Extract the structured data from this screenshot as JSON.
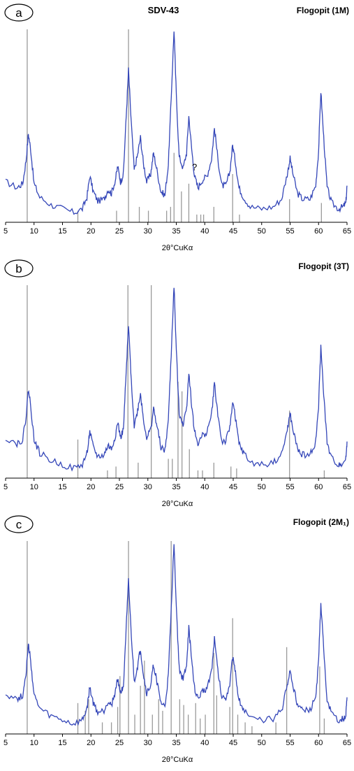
{
  "figure": {
    "accent_color": "#3446b8",
    "reference_color": "#9a9a9a"
  },
  "chart_data": [
    {
      "type": "line",
      "panel_label": "a",
      "title": "SDV-43",
      "reference_phase": "Flogopit (1M)",
      "xlabel": "2θ°CuKα",
      "ylabel": "",
      "xlim": [
        5,
        65
      ],
      "xticks": [
        "5",
        "10",
        "15",
        "20",
        "25",
        "30",
        "35",
        "40",
        "45",
        "50",
        "55",
        "60",
        "65"
      ],
      "grid": false,
      "annotations": [
        {
          "text": "?",
          "x": 38.2,
          "y": 0.27
        }
      ],
      "x": [
        5.0,
        7.0,
        8.0,
        8.6,
        9.0,
        9.4,
        10.0,
        11.0,
        13.0,
        15.0,
        17.0,
        18.5,
        19.3,
        19.8,
        20.4,
        21.2,
        22.3,
        23.0,
        23.6,
        24.3,
        24.7,
        25.2,
        25.7,
        26.2,
        26.6,
        27.0,
        27.6,
        28.2,
        28.7,
        29.2,
        29.8,
        30.5,
        31.0,
        31.6,
        32.3,
        33.0,
        33.6,
        34.1,
        34.6,
        35.0,
        35.5,
        36.2,
        36.8,
        37.2,
        37.7,
        38.2,
        38.8,
        39.6,
        40.4,
        41.2,
        41.7,
        42.3,
        43.0,
        43.7,
        44.4,
        44.9,
        45.4,
        46.0,
        46.8,
        48.0,
        50.0,
        52.0,
        53.5,
        54.5,
        55.0,
        55.5,
        56.3,
        57.2,
        58.5,
        59.5,
        60.0,
        60.4,
        60.9,
        61.5,
        62.3,
        63.5,
        64.3,
        64.8,
        65.0
      ],
      "series": [
        {
          "values": [
            0.21,
            0.18,
            0.2,
            0.32,
            0.46,
            0.38,
            0.2,
            0.13,
            0.09,
            0.07,
            0.05,
            0.07,
            0.13,
            0.24,
            0.16,
            0.11,
            0.12,
            0.17,
            0.15,
            0.22,
            0.29,
            0.21,
            0.25,
            0.55,
            0.79,
            0.56,
            0.27,
            0.35,
            0.44,
            0.31,
            0.21,
            0.25,
            0.36,
            0.27,
            0.16,
            0.14,
            0.3,
            0.64,
            1.0,
            0.66,
            0.34,
            0.28,
            0.36,
            0.55,
            0.38,
            0.24,
            0.18,
            0.22,
            0.24,
            0.33,
            0.49,
            0.33,
            0.19,
            0.19,
            0.26,
            0.4,
            0.31,
            0.18,
            0.13,
            0.08,
            0.07,
            0.08,
            0.12,
            0.25,
            0.33,
            0.25,
            0.15,
            0.12,
            0.12,
            0.19,
            0.37,
            0.68,
            0.44,
            0.18,
            0.1,
            0.07,
            0.08,
            0.1,
            0.19
          ]
        }
      ],
      "reference_lines": [
        {
          "x": 8.8,
          "intensity": 1.0
        },
        {
          "x": 17.7,
          "intensity": 0.06
        },
        {
          "x": 24.5,
          "intensity": 0.06
        },
        {
          "x": 26.6,
          "intensity": 1.0
        },
        {
          "x": 28.5,
          "intensity": 0.08
        },
        {
          "x": 30.1,
          "intensity": 0.06
        },
        {
          "x": 33.3,
          "intensity": 0.06
        },
        {
          "x": 34.0,
          "intensity": 0.08
        },
        {
          "x": 34.6,
          "intensity": 0.36
        },
        {
          "x": 35.9,
          "intensity": 0.16
        },
        {
          "x": 37.2,
          "intensity": 0.2
        },
        {
          "x": 38.6,
          "intensity": 0.04
        },
        {
          "x": 39.3,
          "intensity": 0.04
        },
        {
          "x": 39.8,
          "intensity": 0.04
        },
        {
          "x": 41.6,
          "intensity": 0.08
        },
        {
          "x": 44.9,
          "intensity": 0.25
        },
        {
          "x": 46.1,
          "intensity": 0.04
        },
        {
          "x": 54.9,
          "intensity": 0.12
        },
        {
          "x": 60.5,
          "intensity": 0.1
        }
      ]
    },
    {
      "type": "line",
      "panel_label": "b",
      "title": "",
      "reference_phase": "Flogopit (3T)",
      "xlabel": "2θ°CuKα",
      "ylabel": "",
      "xlim": [
        5,
        65
      ],
      "xticks": [
        "5",
        "10",
        "15",
        "20",
        "25",
        "30",
        "35",
        "40",
        "45",
        "50",
        "55",
        "60",
        "65"
      ],
      "grid": false,
      "x": [
        5.0,
        7.0,
        8.0,
        8.6,
        9.0,
        9.4,
        10.0,
        11.0,
        13.0,
        15.0,
        17.0,
        18.5,
        19.3,
        19.8,
        20.4,
        21.2,
        22.3,
        23.0,
        23.6,
        24.3,
        24.7,
        25.2,
        25.7,
        26.2,
        26.6,
        27.0,
        27.6,
        28.2,
        28.7,
        29.2,
        29.8,
        30.5,
        31.0,
        31.6,
        32.3,
        33.0,
        33.6,
        34.1,
        34.6,
        35.0,
        35.5,
        36.2,
        36.8,
        37.2,
        37.7,
        38.2,
        38.8,
        39.6,
        40.4,
        41.2,
        41.7,
        42.3,
        43.0,
        43.7,
        44.4,
        44.9,
        45.4,
        46.0,
        46.8,
        48.0,
        50.0,
        52.0,
        53.5,
        54.5,
        55.0,
        55.5,
        56.3,
        57.2,
        58.5,
        59.5,
        60.0,
        60.4,
        60.9,
        61.5,
        62.3,
        63.5,
        64.3,
        64.8,
        65.0
      ],
      "series": [
        {
          "values": [
            0.21,
            0.18,
            0.2,
            0.32,
            0.46,
            0.38,
            0.2,
            0.13,
            0.09,
            0.07,
            0.05,
            0.07,
            0.13,
            0.24,
            0.16,
            0.11,
            0.12,
            0.17,
            0.15,
            0.22,
            0.29,
            0.21,
            0.25,
            0.55,
            0.79,
            0.56,
            0.27,
            0.35,
            0.44,
            0.31,
            0.21,
            0.25,
            0.36,
            0.27,
            0.16,
            0.14,
            0.3,
            0.64,
            1.0,
            0.66,
            0.34,
            0.28,
            0.36,
            0.55,
            0.38,
            0.24,
            0.18,
            0.22,
            0.24,
            0.33,
            0.49,
            0.33,
            0.19,
            0.19,
            0.26,
            0.4,
            0.31,
            0.18,
            0.13,
            0.08,
            0.07,
            0.08,
            0.12,
            0.25,
            0.33,
            0.25,
            0.15,
            0.12,
            0.12,
            0.19,
            0.37,
            0.68,
            0.44,
            0.18,
            0.1,
            0.07,
            0.08,
            0.1,
            0.19
          ]
        }
      ],
      "reference_lines": [
        {
          "x": 8.8,
          "intensity": 1.0
        },
        {
          "x": 17.7,
          "intensity": 0.2
        },
        {
          "x": 22.9,
          "intensity": 0.04
        },
        {
          "x": 24.4,
          "intensity": 0.06
        },
        {
          "x": 26.5,
          "intensity": 1.0
        },
        {
          "x": 28.3,
          "intensity": 0.08
        },
        {
          "x": 30.6,
          "intensity": 1.0
        },
        {
          "x": 33.6,
          "intensity": 0.1
        },
        {
          "x": 34.3,
          "intensity": 0.1
        },
        {
          "x": 35.3,
          "intensity": 0.5
        },
        {
          "x": 36.0,
          "intensity": 0.45
        },
        {
          "x": 37.3,
          "intensity": 0.15
        },
        {
          "x": 38.8,
          "intensity": 0.04
        },
        {
          "x": 39.6,
          "intensity": 0.04
        },
        {
          "x": 41.6,
          "intensity": 0.08
        },
        {
          "x": 44.6,
          "intensity": 0.06
        },
        {
          "x": 45.6,
          "intensity": 0.05
        },
        {
          "x": 54.9,
          "intensity": 0.35
        },
        {
          "x": 61.0,
          "intensity": 0.04
        }
      ]
    },
    {
      "type": "line",
      "panel_label": "c",
      "title": "",
      "reference_phase": "Flogopit (2M₁)",
      "xlabel": "2θ°CuKα",
      "ylabel": "",
      "xlim": [
        5,
        65
      ],
      "xticks": [
        "5",
        "10",
        "15",
        "20",
        "25",
        "30",
        "35",
        "40",
        "45",
        "50",
        "55",
        "60",
        "65"
      ],
      "grid": false,
      "x": [
        5.0,
        7.0,
        8.0,
        8.6,
        9.0,
        9.4,
        10.0,
        11.0,
        13.0,
        15.0,
        17.0,
        18.5,
        19.3,
        19.8,
        20.4,
        21.2,
        22.3,
        23.0,
        23.6,
        24.3,
        24.7,
        25.2,
        25.7,
        26.2,
        26.6,
        27.0,
        27.6,
        28.2,
        28.7,
        29.2,
        29.8,
        30.5,
        31.0,
        31.6,
        32.3,
        33.0,
        33.6,
        34.1,
        34.6,
        35.0,
        35.5,
        36.2,
        36.8,
        37.2,
        37.7,
        38.2,
        38.8,
        39.6,
        40.4,
        41.2,
        41.7,
        42.3,
        43.0,
        43.7,
        44.4,
        44.9,
        45.4,
        46.0,
        46.8,
        48.0,
        50.0,
        52.0,
        53.5,
        54.5,
        55.0,
        55.5,
        56.3,
        57.2,
        58.5,
        59.5,
        60.0,
        60.4,
        60.9,
        61.5,
        62.3,
        63.5,
        64.3,
        64.8,
        65.0
      ],
      "series": [
        {
          "values": [
            0.21,
            0.18,
            0.2,
            0.32,
            0.46,
            0.38,
            0.2,
            0.13,
            0.09,
            0.07,
            0.05,
            0.07,
            0.13,
            0.24,
            0.16,
            0.11,
            0.12,
            0.17,
            0.15,
            0.22,
            0.29,
            0.21,
            0.25,
            0.55,
            0.79,
            0.56,
            0.27,
            0.35,
            0.44,
            0.31,
            0.21,
            0.25,
            0.36,
            0.27,
            0.16,
            0.14,
            0.3,
            0.64,
            1.0,
            0.66,
            0.34,
            0.28,
            0.36,
            0.55,
            0.38,
            0.24,
            0.18,
            0.22,
            0.24,
            0.33,
            0.49,
            0.33,
            0.19,
            0.19,
            0.26,
            0.4,
            0.31,
            0.18,
            0.13,
            0.08,
            0.07,
            0.08,
            0.12,
            0.25,
            0.33,
            0.25,
            0.15,
            0.12,
            0.12,
            0.19,
            0.37,
            0.68,
            0.44,
            0.18,
            0.1,
            0.07,
            0.08,
            0.1,
            0.19
          ]
        }
      ],
      "reference_lines": [
        {
          "x": 8.8,
          "intensity": 1.0
        },
        {
          "x": 17.7,
          "intensity": 0.16
        },
        {
          "x": 19.0,
          "intensity": 0.12
        },
        {
          "x": 19.6,
          "intensity": 0.18
        },
        {
          "x": 22.0,
          "intensity": 0.06
        },
        {
          "x": 23.6,
          "intensity": 0.06
        },
        {
          "x": 24.7,
          "intensity": 0.14
        },
        {
          "x": 25.1,
          "intensity": 0.3
        },
        {
          "x": 26.6,
          "intensity": 1.0
        },
        {
          "x": 27.7,
          "intensity": 0.1
        },
        {
          "x": 28.7,
          "intensity": 0.25
        },
        {
          "x": 29.4,
          "intensity": 0.38
        },
        {
          "x": 30.8,
          "intensity": 0.1
        },
        {
          "x": 31.9,
          "intensity": 0.18
        },
        {
          "x": 32.6,
          "intensity": 0.12
        },
        {
          "x": 34.1,
          "intensity": 1.0
        },
        {
          "x": 35.6,
          "intensity": 0.18
        },
        {
          "x": 36.3,
          "intensity": 0.15
        },
        {
          "x": 37.1,
          "intensity": 0.1
        },
        {
          "x": 38.4,
          "intensity": 0.16
        },
        {
          "x": 39.2,
          "intensity": 0.08
        },
        {
          "x": 40.1,
          "intensity": 0.1
        },
        {
          "x": 41.6,
          "intensity": 0.42
        },
        {
          "x": 42.1,
          "intensity": 0.2
        },
        {
          "x": 44.4,
          "intensity": 0.14
        },
        {
          "x": 44.9,
          "intensity": 0.6
        },
        {
          "x": 45.8,
          "intensity": 0.1
        },
        {
          "x": 47.1,
          "intensity": 0.06
        },
        {
          "x": 48.3,
          "intensity": 0.04
        },
        {
          "x": 52.5,
          "intensity": 0.06
        },
        {
          "x": 54.4,
          "intensity": 0.45
        },
        {
          "x": 60.2,
          "intensity": 0.35
        },
        {
          "x": 61.0,
          "intensity": 0.08
        }
      ]
    }
  ]
}
